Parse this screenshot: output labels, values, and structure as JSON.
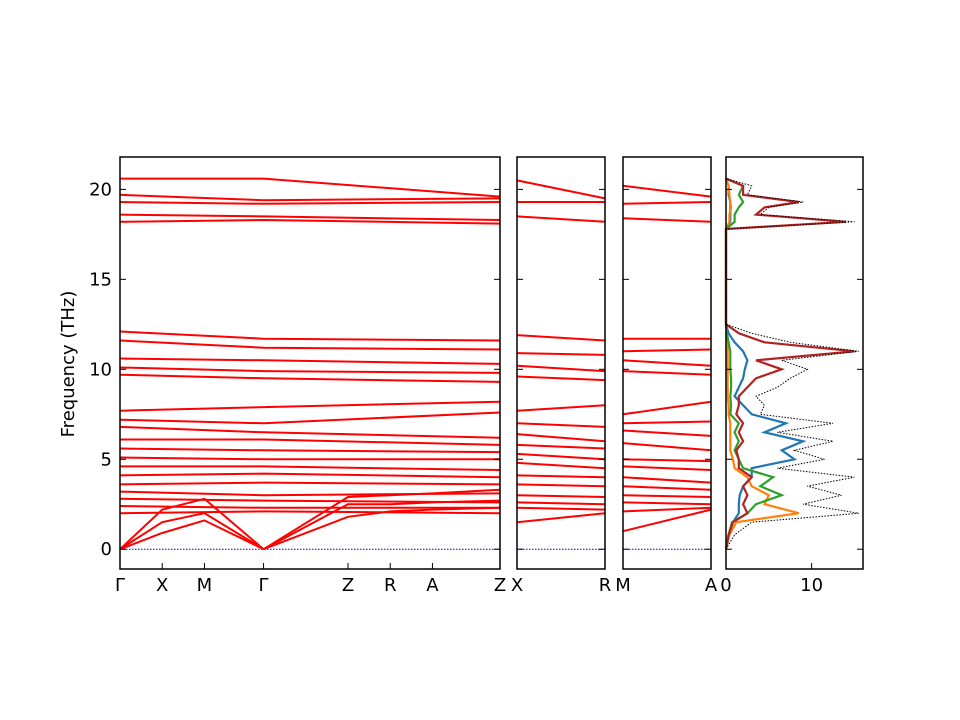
{
  "chart_data": {
    "type": "line",
    "ylabel": "Frequency (THz)",
    "ylim": [
      -1.1,
      21.8
    ],
    "yticks": [
      0,
      5,
      10,
      15,
      20
    ],
    "colors": {
      "band": "#ff0000",
      "zero_line": "#0000cc",
      "dos_total": "#000000",
      "pdos": [
        "#1f77b4",
        "#ff7f0e",
        "#2ca02c",
        "#b22222"
      ]
    },
    "band_panels": [
      {
        "xlabels": [
          "Γ",
          "X",
          "M",
          "Γ",
          "Z",
          "R",
          "A",
          "Z"
        ],
        "xticks": [
          0,
          0.5,
          1.0,
          1.7,
          2.7,
          3.2,
          3.7,
          4.5
        ],
        "xlim": [
          0,
          4.5
        ],
        "path_breaks": [
          1.7
        ],
        "series": [
          {
            "name": "",
            "x": [
              0,
              1.7,
              4.5
            ],
            "y": [
              20.6,
              20.6,
              19.6
            ]
          },
          {
            "name": "",
            "x": [
              0,
              1.7,
              4.5
            ],
            "y": [
              19.7,
              19.4,
              19.5
            ]
          },
          {
            "name": "",
            "x": [
              0,
              1.7,
              4.5
            ],
            "y": [
              19.3,
              19.2,
              19.3
            ]
          },
          {
            "name": "",
            "x": [
              0,
              1.7,
              4.5
            ],
            "y": [
              18.6,
              18.5,
              18.3
            ]
          },
          {
            "name": "",
            "x": [
              0,
              1.7,
              4.5
            ],
            "y": [
              18.2,
              18.3,
              18.1
            ]
          },
          {
            "name": "",
            "x": [
              0,
              1.7,
              4.5
            ],
            "y": [
              12.1,
              11.7,
              11.6
            ]
          },
          {
            "name": "",
            "x": [
              0,
              1.7,
              4.5
            ],
            "y": [
              11.6,
              11.2,
              11.1
            ]
          },
          {
            "name": "",
            "x": [
              0,
              1.7,
              4.5
            ],
            "y": [
              10.6,
              10.5,
              10.3
            ]
          },
          {
            "name": "",
            "x": [
              0,
              1.7,
              4.5
            ],
            "y": [
              10.1,
              9.9,
              9.8
            ]
          },
          {
            "name": "",
            "x": [
              0,
              1.7,
              4.5
            ],
            "y": [
              9.7,
              9.5,
              9.3
            ]
          },
          {
            "name": "",
            "x": [
              0,
              1.7,
              4.5
            ],
            "y": [
              7.7,
              7.9,
              8.2
            ]
          },
          {
            "name": "",
            "x": [
              0,
              1.7,
              4.5
            ],
            "y": [
              7.2,
              7.0,
              7.6
            ]
          },
          {
            "name": "",
            "x": [
              0,
              1.7,
              4.5
            ],
            "y": [
              6.8,
              6.5,
              6.2
            ]
          },
          {
            "name": "",
            "x": [
              0,
              1.7,
              4.5
            ],
            "y": [
              6.1,
              6.1,
              5.8
            ]
          },
          {
            "name": "",
            "x": [
              0,
              1.7,
              4.5
            ],
            "y": [
              5.6,
              5.5,
              5.4
            ]
          },
          {
            "name": "",
            "x": [
              0,
              1.7,
              4.5
            ],
            "y": [
              5.1,
              5.0,
              5.0
            ]
          },
          {
            "name": "",
            "x": [
              0,
              1.7,
              4.5
            ],
            "y": [
              4.6,
              4.6,
              4.4
            ]
          },
          {
            "name": "",
            "x": [
              0,
              1.7,
              4.5
            ],
            "y": [
              4.1,
              4.2,
              4.0
            ]
          },
          {
            "name": "",
            "x": [
              0,
              1.7,
              4.5
            ],
            "y": [
              3.6,
              3.7,
              3.6
            ]
          },
          {
            "name": "",
            "x": [
              0,
              1.7,
              4.5
            ],
            "y": [
              3.2,
              3.0,
              3.1
            ]
          },
          {
            "name": "",
            "x": [
              0,
              1.7,
              4.5
            ],
            "y": [
              2.8,
              2.7,
              2.6
            ]
          },
          {
            "name": "",
            "x": [
              0,
              1.7,
              4.5
            ],
            "y": [
              2.4,
              2.3,
              2.3
            ]
          },
          {
            "name": "",
            "x": [
              0,
              1.7,
              4.5
            ],
            "y": [
              2.0,
              2.1,
              2.0
            ]
          },
          {
            "name": "",
            "x": [
              0,
              0.5,
              1.0,
              1.7
            ],
            "y": [
              0,
              1.5,
              2.0,
              0
            ]
          },
          {
            "name": "",
            "x": [
              0,
              0.5,
              1.0,
              1.7
            ],
            "y": [
              0,
              2.2,
              2.8,
              0
            ]
          },
          {
            "name": "",
            "x": [
              0,
              0.5,
              1.0,
              1.7
            ],
            "y": [
              0,
              0.9,
              1.6,
              0
            ]
          },
          {
            "name": "",
            "x": [
              1.7,
              2.7,
              3.2,
              3.7,
              4.5
            ],
            "y": [
              0,
              1.8,
              2.1,
              2.2,
              2.3
            ]
          },
          {
            "name": "",
            "x": [
              1.7,
              2.7,
              3.2,
              3.7,
              4.5
            ],
            "y": [
              0,
              2.5,
              2.5,
              2.6,
              2.7
            ]
          },
          {
            "name": "",
            "x": [
              1.7,
              2.7,
              3.2,
              3.7,
              4.5
            ],
            "y": [
              0,
              2.9,
              3.0,
              3.1,
              3.3
            ]
          }
        ]
      },
      {
        "xlabels": [
          "X",
          "R"
        ],
        "xticks": [
          0,
          1
        ],
        "xlim": [
          0,
          1
        ],
        "series": [
          {
            "name": "",
            "x": [
              0,
              1
            ],
            "y": [
              20.5,
              19.5
            ]
          },
          {
            "name": "",
            "x": [
              0,
              1
            ],
            "y": [
              19.3,
              19.3
            ]
          },
          {
            "name": "",
            "x": [
              0,
              1
            ],
            "y": [
              18.5,
              18.2
            ]
          },
          {
            "name": "",
            "x": [
              0,
              1
            ],
            "y": [
              11.9,
              11.6
            ]
          },
          {
            "name": "",
            "x": [
              0,
              1
            ],
            "y": [
              10.9,
              10.8
            ]
          },
          {
            "name": "",
            "x": [
              0,
              1
            ],
            "y": [
              10.2,
              9.9
            ]
          },
          {
            "name": "",
            "x": [
              0,
              1
            ],
            "y": [
              9.6,
              9.4
            ]
          },
          {
            "name": "",
            "x": [
              0,
              1
            ],
            "y": [
              7.7,
              8.0
            ]
          },
          {
            "name": "",
            "x": [
              0,
              1
            ],
            "y": [
              7.0,
              6.8
            ]
          },
          {
            "name": "",
            "x": [
              0,
              1
            ],
            "y": [
              6.4,
              6.0
            ]
          },
          {
            "name": "",
            "x": [
              0,
              1
            ],
            "y": [
              5.8,
              5.6
            ]
          },
          {
            "name": "",
            "x": [
              0,
              1
            ],
            "y": [
              5.3,
              5.0
            ]
          },
          {
            "name": "",
            "x": [
              0,
              1
            ],
            "y": [
              4.8,
              4.5
            ]
          },
          {
            "name": "",
            "x": [
              0,
              1
            ],
            "y": [
              4.1,
              4.0
            ]
          },
          {
            "name": "",
            "x": [
              0,
              1
            ],
            "y": [
              3.6,
              3.5
            ]
          },
          {
            "name": "",
            "x": [
              0,
              1
            ],
            "y": [
              3.0,
              2.9
            ]
          },
          {
            "name": "",
            "x": [
              0,
              1
            ],
            "y": [
              2.6,
              2.5
            ]
          },
          {
            "name": "",
            "x": [
              0,
              1
            ],
            "y": [
              2.3,
              2.2
            ]
          },
          {
            "name": "",
            "x": [
              0,
              1
            ],
            "y": [
              1.5,
              2.0
            ]
          }
        ]
      },
      {
        "xlabels": [
          "M",
          "A"
        ],
        "xticks": [
          0,
          1
        ],
        "xlim": [
          0,
          1
        ],
        "series": [
          {
            "name": "",
            "x": [
              0,
              1
            ],
            "y": [
              20.2,
              19.6
            ]
          },
          {
            "name": "",
            "x": [
              0,
              1
            ],
            "y": [
              19.2,
              19.3
            ]
          },
          {
            "name": "",
            "x": [
              0,
              1
            ],
            "y": [
              18.4,
              18.2
            ]
          },
          {
            "name": "",
            "x": [
              0,
              1
            ],
            "y": [
              11.7,
              11.7
            ]
          },
          {
            "name": "",
            "x": [
              0,
              1
            ],
            "y": [
              11.0,
              11.1
            ]
          },
          {
            "name": "",
            "x": [
              0,
              1
            ],
            "y": [
              10.5,
              10.2
            ]
          },
          {
            "name": "",
            "x": [
              0,
              1
            ],
            "y": [
              9.9,
              9.7
            ]
          },
          {
            "name": "",
            "x": [
              0,
              1
            ],
            "y": [
              7.5,
              8.2
            ]
          },
          {
            "name": "",
            "x": [
              0,
              1
            ],
            "y": [
              7.0,
              7.1
            ]
          },
          {
            "name": "",
            "x": [
              0,
              1
            ],
            "y": [
              6.6,
              6.3
            ]
          },
          {
            "name": "",
            "x": [
              0,
              1
            ],
            "y": [
              5.9,
              5.5
            ]
          },
          {
            "name": "",
            "x": [
              0,
              1
            ],
            "y": [
              5.0,
              4.9
            ]
          },
          {
            "name": "",
            "x": [
              0,
              1
            ],
            "y": [
              4.6,
              4.4
            ]
          },
          {
            "name": "",
            "x": [
              0,
              1
            ],
            "y": [
              4.0,
              3.7
            ]
          },
          {
            "name": "",
            "x": [
              0,
              1
            ],
            "y": [
              3.5,
              3.3
            ]
          },
          {
            "name": "",
            "x": [
              0,
              1
            ],
            "y": [
              3.0,
              2.9
            ]
          },
          {
            "name": "",
            "x": [
              0,
              1
            ],
            "y": [
              2.6,
              2.5
            ]
          },
          {
            "name": "",
            "x": [
              0,
              1
            ],
            "y": [
              2.1,
              2.3
            ]
          },
          {
            "name": "",
            "x": [
              0,
              1
            ],
            "y": [
              1.0,
              2.2
            ]
          }
        ]
      }
    ],
    "dos_panel": {
      "xticks": [
        0,
        10
      ],
      "xtick_labels": [
        "0",
        "10"
      ],
      "xlim": [
        0,
        16
      ],
      "freq": [
        0.0,
        0.8,
        1.5,
        2.0,
        2.5,
        3.0,
        3.5,
        4.0,
        4.5,
        5.0,
        5.5,
        6.0,
        6.5,
        7.0,
        7.5,
        8.0,
        8.5,
        9.0,
        9.5,
        10.0,
        10.5,
        11.0,
        11.5,
        12.0,
        12.5,
        17.8,
        18.2,
        18.6,
        19.0,
        19.3,
        19.7,
        20.2,
        20.6
      ],
      "total": [
        0.0,
        1.0,
        3.0,
        15.5,
        9.0,
        13.5,
        9.5,
        15.0,
        6.0,
        11.5,
        8.0,
        12.5,
        6.0,
        12.5,
        4.0,
        4.5,
        3.5,
        6.0,
        7.5,
        9.5,
        6.5,
        15.5,
        7.5,
        3.0,
        0.0,
        0.0,
        15.0,
        4.0,
        5.0,
        9.0,
        2.5,
        3.0,
        0.0
      ],
      "pdos": [
        {
          "name": "",
          "values": [
            0.0,
            0.3,
            0.8,
            1.5,
            1.5,
            1.6,
            2.0,
            3.0,
            3.0,
            8.0,
            6.5,
            9.0,
            4.5,
            7.0,
            3.0,
            2.0,
            1.0,
            1.5,
            2.0,
            2.2,
            2.5,
            2.0,
            1.0,
            0.3,
            0.0,
            0.0,
            0.5,
            0.5,
            0.5,
            0.5,
            0.3,
            0.3,
            0.0
          ]
        },
        {
          "name": "",
          "values": [
            0.0,
            0.4,
            1.2,
            8.5,
            4.5,
            5.0,
            3.0,
            2.5,
            1.0,
            0.8,
            0.5,
            0.5,
            0.5,
            0.5,
            0.3,
            0.3,
            0.2,
            0.2,
            0.2,
            0.2,
            0.2,
            0.2,
            0.2,
            0.1,
            0.0,
            0.0,
            0.4,
            0.4,
            0.6,
            0.5,
            0.4,
            0.3,
            0.0
          ]
        },
        {
          "name": "",
          "values": [
            0.0,
            0.3,
            0.7,
            2.5,
            3.5,
            6.5,
            4.0,
            5.5,
            2.0,
            1.5,
            1.0,
            1.5,
            1.0,
            1.5,
            0.5,
            0.6,
            0.5,
            0.6,
            0.6,
            0.5,
            0.5,
            0.5,
            0.3,
            0.1,
            0.0,
            0.0,
            1.0,
            1.0,
            1.5,
            2.0,
            1.5,
            2.0,
            0.0
          ]
        },
        {
          "name": "",
          "values": [
            0.0,
            0.3,
            0.8,
            2.5,
            2.0,
            2.5,
            2.0,
            3.0,
            1.5,
            1.5,
            1.2,
            2.0,
            1.5,
            2.0,
            1.2,
            1.5,
            1.5,
            2.5,
            3.5,
            6.5,
            3.5,
            15.0,
            4.5,
            1.5,
            0.0,
            0.0,
            14.0,
            3.5,
            4.5,
            8.5,
            2.0,
            2.0,
            0.0
          ]
        }
      ]
    }
  }
}
